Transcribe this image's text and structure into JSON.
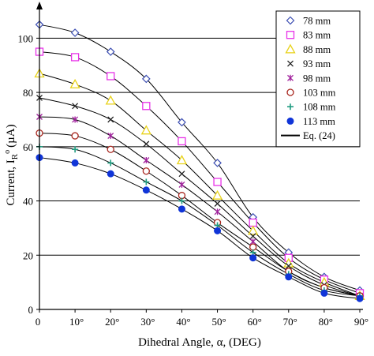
{
  "chart_data": {
    "type": "scatter",
    "xlabel": "Dihedral Angle, α, (DEG)",
    "ylabel": "Current, I",
    "ylabel_sub": "R",
    "ylabel_sup": "o",
    "ylabel_unit": "(µA)",
    "xlim": [
      0,
      90
    ],
    "ylim": [
      0,
      110
    ],
    "x_ticks": [
      0,
      10,
      20,
      30,
      40,
      50,
      60,
      70,
      80,
      90
    ],
    "x_tick_labels": [
      "0",
      "10°",
      "20°",
      "30°",
      "40°",
      "50°",
      "60°",
      "70°",
      "80°",
      "90°"
    ],
    "y_ticks": [
      0,
      20,
      40,
      60,
      80,
      100
    ],
    "y_tick_labels": [
      "0",
      "20",
      "40",
      "60",
      "80",
      "100"
    ],
    "grid": "horizontal",
    "legend_position": "top-right",
    "x": [
      0,
      10,
      20,
      30,
      40,
      50,
      60,
      70,
      80,
      90
    ],
    "series": [
      {
        "name": "78 mm",
        "marker": "diamond",
        "color": "#3d4fb3",
        "values": [
          105,
          102,
          95,
          85,
          69,
          54,
          34,
          21,
          12,
          7
        ]
      },
      {
        "name": "83 mm",
        "marker": "square",
        "color": "#e832e8",
        "values": [
          95,
          93,
          86,
          75,
          62,
          47,
          32,
          19,
          11,
          6
        ]
      },
      {
        "name": "88 mm",
        "marker": "triangle",
        "color": "#e8d21a",
        "values": [
          87,
          83,
          77,
          66,
          55,
          42,
          29,
          17,
          10,
          5
        ]
      },
      {
        "name": "93 mm",
        "marker": "x",
        "color": "#222222",
        "values": [
          78,
          75,
          70,
          61,
          50,
          39,
          27,
          16,
          9,
          5
        ]
      },
      {
        "name": "98 mm",
        "marker": "star",
        "color": "#a0209c",
        "values": [
          71,
          70,
          64,
          55,
          46,
          36,
          25,
          14,
          8,
          5
        ]
      },
      {
        "name": "103 mm",
        "marker": "circle",
        "color": "#a8261e",
        "values": [
          65,
          64,
          59,
          51,
          42,
          32,
          23,
          14,
          8,
          5
        ]
      },
      {
        "name": "108 mm",
        "marker": "plus",
        "color": "#1f9c80",
        "values": [
          60,
          59,
          54,
          47,
          40,
          31,
          21,
          13,
          7,
          5
        ]
      },
      {
        "name": "113 mm",
        "marker": "dot",
        "color": "#1035d8",
        "values": [
          56,
          54,
          50,
          44,
          37,
          29,
          19,
          12,
          6,
          4
        ]
      }
    ],
    "fit_line": {
      "name": "Eq. (24)",
      "color": "#000000"
    }
  }
}
